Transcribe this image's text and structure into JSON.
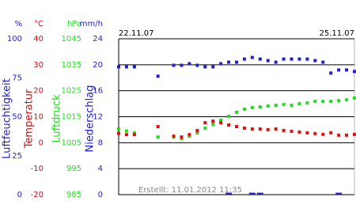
{
  "chart_data": {
    "type": "line",
    "start_label": "22.11.07",
    "end_label": "25.11.07",
    "footnote": "Erstellt: 11.01.2012 11:35",
    "grid_axis": 1,
    "axes": [
      {
        "name": "Luftfeuchtigkeit",
        "unit": "%",
        "color": "#1f1fd0",
        "ylim": [
          0,
          100
        ],
        "yticks": [
          0,
          25,
          50,
          75,
          100
        ]
      },
      {
        "name": "Temperatur",
        "unit": "°C",
        "color": "#d01010",
        "ylim": [
          -20,
          40
        ],
        "yticks": [
          -20,
          -10,
          0,
          10,
          20,
          30,
          40
        ]
      },
      {
        "name": "Luftdruck",
        "unit": "hPa",
        "color": "#22dd22",
        "ylim": [
          985,
          1045
        ],
        "yticks": [
          985,
          995,
          1005,
          1015,
          1025,
          1035,
          1045
        ]
      },
      {
        "name": "Niederschlag",
        "unit": "mm/h",
        "color": "#1f1fd0",
        "ylim": [
          0,
          24
        ],
        "yticks": [
          0,
          4,
          8,
          12,
          16,
          20,
          24
        ]
      }
    ],
    "series": [
      {
        "axis": 0,
        "mark": "dot",
        "color": "#1f1fd0",
        "values": [
          82,
          82,
          82,
          null,
          null,
          76,
          null,
          83,
          83,
          84,
          83,
          82,
          82,
          84,
          85,
          85,
          87,
          88,
          87,
          86,
          85,
          87,
          87,
          87,
          87,
          86,
          85,
          78,
          80,
          80,
          79
        ]
      },
      {
        "axis": 2,
        "mark": "dot",
        "color": "#22dd22",
        "values": [
          1010.3,
          1009.5,
          1008.8,
          null,
          null,
          1007.2,
          null,
          1007.2,
          1006.6,
          1007.5,
          1008.8,
          1010.6,
          1012.1,
          1013.6,
          1015.2,
          1016.7,
          1017.9,
          1018.5,
          1018.8,
          1019.1,
          1019.4,
          1019.7,
          1019.4,
          1020.0,
          1020.3,
          1020.9,
          1020.9,
          1020.9,
          1021.2,
          1021.5,
          1022.2
        ]
      },
      {
        "axis": 1,
        "mark": "dot",
        "color": "#e01010",
        "values": [
          3.6,
          3.1,
          3.1,
          null,
          null,
          6.2,
          null,
          2.5,
          2.2,
          3.1,
          4.7,
          7.7,
          8.3,
          7.7,
          6.8,
          6.2,
          5.6,
          5.3,
          5.3,
          5.0,
          5.3,
          4.7,
          4.4,
          4.1,
          3.8,
          3.5,
          3.2,
          3.8,
          2.9,
          2.9,
          3.2
        ]
      },
      {
        "axis": 3,
        "mark": "bar",
        "color": "#1f1fd0",
        "values": [
          0,
          0,
          0,
          null,
          null,
          0,
          null,
          0,
          0,
          0,
          0,
          0,
          0,
          0,
          0.3,
          0,
          0,
          0.3,
          0.3,
          0,
          0,
          0,
          0,
          0,
          0,
          0,
          0,
          0,
          0.3,
          0,
          0
        ]
      }
    ]
  }
}
